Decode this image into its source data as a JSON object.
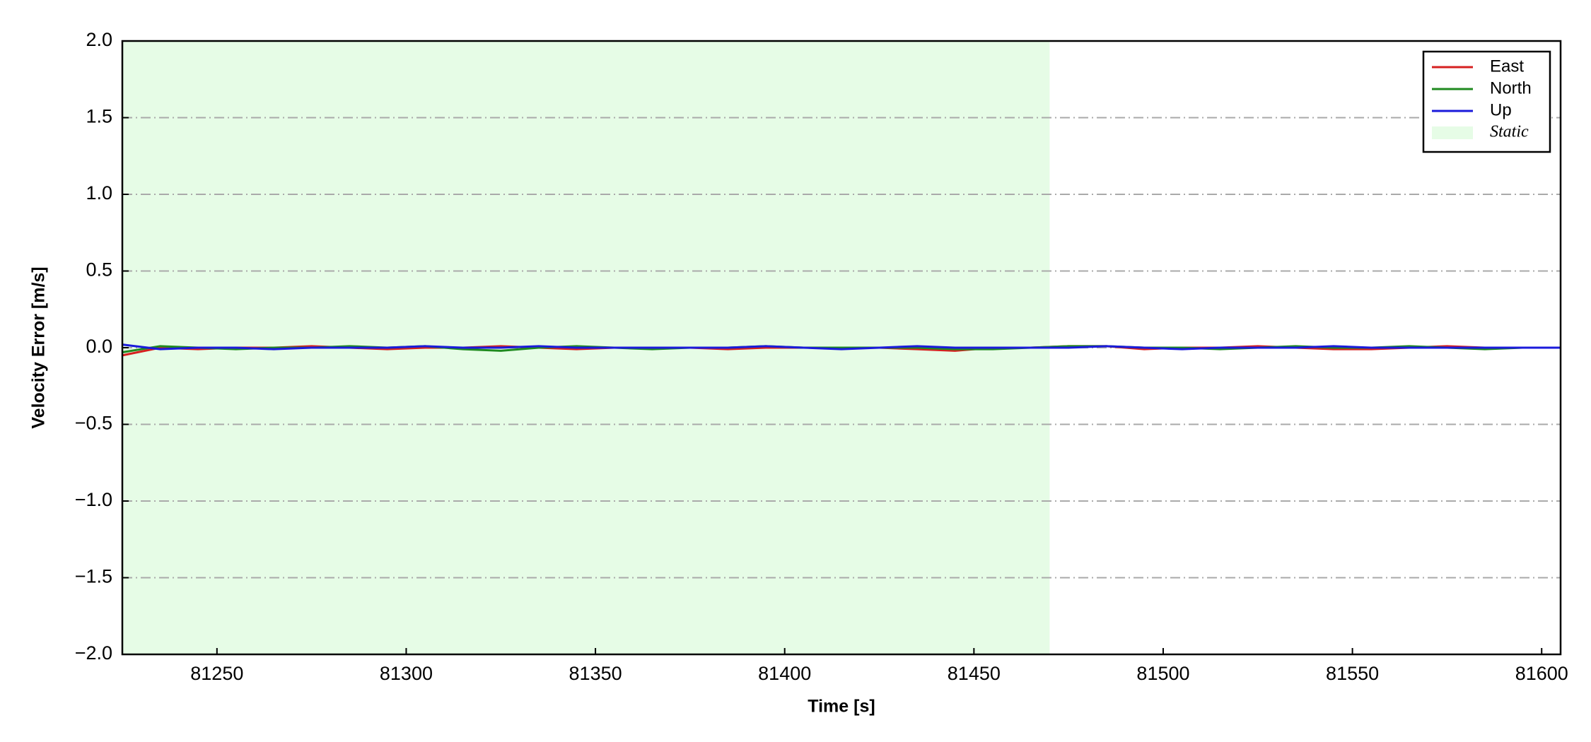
{
  "chart_data": {
    "type": "line",
    "xlabel": "Time [s]",
    "ylabel": "Velocity Error [m/s]",
    "x": [
      81225,
      81235,
      81245,
      81255,
      81265,
      81275,
      81285,
      81295,
      81305,
      81315,
      81325,
      81335,
      81345,
      81355,
      81365,
      81375,
      81385,
      81395,
      81405,
      81415,
      81425,
      81435,
      81445,
      81455,
      81465,
      81475,
      81485,
      81495,
      81505,
      81515,
      81525,
      81535,
      81545,
      81555,
      81565,
      81575,
      81585,
      81595,
      81605
    ],
    "series": [
      {
        "name": "East",
        "color": "#d62020",
        "values": [
          -0.05,
          0,
          -0.01,
          0,
          0,
          0.01,
          0,
          -0.01,
          0,
          0,
          0.01,
          0,
          -0.01,
          0,
          0,
          0,
          -0.01,
          0,
          0,
          0,
          0,
          -0.01,
          -0.02,
          0,
          0,
          0.01,
          0.01,
          -0.01,
          0,
          0,
          0.01,
          0,
          -0.01,
          -0.01,
          0,
          0.01,
          0,
          0,
          0
        ]
      },
      {
        "name": "North",
        "color": "#1f8a1f",
        "values": [
          -0.03,
          0.01,
          0,
          -0.01,
          0,
          0,
          0.01,
          0,
          0.01,
          -0.01,
          -0.02,
          0,
          0.01,
          0,
          -0.01,
          0,
          0,
          0.01,
          0,
          0,
          0,
          0,
          -0.01,
          -0.01,
          0,
          0.01,
          0.01,
          0,
          0,
          -0.01,
          0,
          0.01,
          0,
          0,
          0.01,
          0,
          -0.01,
          0,
          0
        ]
      },
      {
        "name": "Up",
        "color": "#1a1adb",
        "values": [
          0.02,
          -0.01,
          0,
          0,
          -0.01,
          0,
          0,
          0,
          0.01,
          0,
          0,
          0.01,
          0,
          0,
          0,
          0,
          0,
          0.01,
          0,
          -0.01,
          0,
          0.01,
          0,
          0,
          0,
          0,
          0.01,
          0,
          -0.01,
          0,
          0,
          0,
          0.01,
          0,
          0,
          0,
          0,
          0,
          0
        ]
      }
    ],
    "spans": [
      {
        "name": "Static",
        "start": 81225,
        "end": 81470,
        "color": "#e6fce6"
      }
    ],
    "xlim": [
      81225,
      81605
    ],
    "xticks": [
      81250,
      81300,
      81350,
      81400,
      81450,
      81500,
      81550,
      81600
    ],
    "ylim": [
      -2,
      2
    ],
    "yticks": [
      {
        "value": -2,
        "label": "−2.0"
      },
      {
        "value": -1.5,
        "label": "−1.5"
      },
      {
        "value": -1,
        "label": "−1.0"
      },
      {
        "value": -0.5,
        "label": "−0.5"
      },
      {
        "value": 0,
        "label": "0.0"
      },
      {
        "value": 0.5,
        "label": "0.5"
      },
      {
        "value": 1,
        "label": "1.0"
      },
      {
        "value": 1.5,
        "label": "1.5"
      },
      {
        "value": 2,
        "label": "2.0"
      }
    ],
    "grid": true,
    "legend": "upper right"
  }
}
